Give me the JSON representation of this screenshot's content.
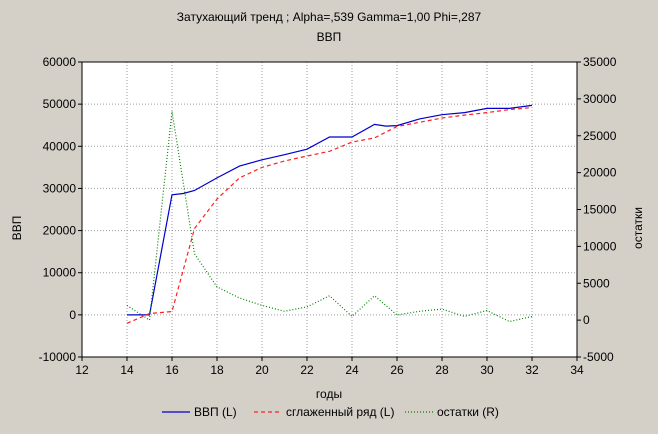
{
  "chart_data": {
    "type": "line",
    "title": "Затухающий тренд ; Alpha=,539 Gamma=1,00 Phi=,287",
    "subtitle": "ВВП",
    "xlabel": "годы",
    "ylabel_left": "ВВП",
    "ylabel_right": "остатки",
    "xlim": [
      12,
      34
    ],
    "ylim_left": [
      -10000,
      60000
    ],
    "ylim_right": [
      -5000,
      35000
    ],
    "x_ticks": [
      12,
      14,
      16,
      18,
      20,
      22,
      24,
      26,
      28,
      30,
      32,
      34
    ],
    "y_ticks_left": [
      -10000,
      0,
      10000,
      20000,
      30000,
      40000,
      50000,
      60000
    ],
    "y_ticks_right": [
      -5000,
      0,
      5000,
      10000,
      15000,
      20000,
      25000,
      30000,
      35000
    ],
    "grid": true,
    "legend_position": "bottom",
    "series": [
      {
        "name": "ВВП (L)",
        "axis": "left",
        "style": "solid",
        "color": "#0000cc",
        "x": [
          14,
          15,
          16,
          16.5,
          17,
          18,
          19,
          20,
          21,
          22,
          23,
          24,
          25,
          25.5,
          26,
          27,
          28,
          29,
          30,
          31,
          32
        ],
        "y": [
          0,
          0,
          28500,
          28800,
          29500,
          32500,
          35300,
          36800,
          38000,
          39300,
          42200,
          42200,
          45200,
          44800,
          44900,
          46500,
          47500,
          48000,
          49000,
          49000,
          49700
        ]
      },
      {
        "name": "сглаженный ряд (L)",
        "axis": "left",
        "style": "dashed",
        "color": "#ff2020",
        "x": [
          14,
          15,
          16,
          17,
          18,
          19,
          20,
          21,
          22,
          23,
          24,
          25,
          26,
          27,
          28,
          29,
          30,
          31,
          32
        ],
        "y": [
          -2000,
          300,
          800,
          20500,
          27500,
          32500,
          35000,
          36500,
          37700,
          38800,
          41000,
          42000,
          44700,
          45700,
          46700,
          47400,
          48000,
          48700,
          49200
        ]
      },
      {
        "name": "остатки (R)",
        "axis": "right",
        "style": "dotted",
        "color": "#008000",
        "x": [
          14,
          15,
          16,
          17,
          18,
          19,
          20,
          21,
          22,
          23,
          24,
          25,
          26,
          27,
          28,
          29,
          30,
          31,
          32
        ],
        "y": [
          2000,
          0,
          28300,
          9000,
          4500,
          3000,
          2000,
          1200,
          1800,
          3300,
          500,
          3300,
          700,
          1200,
          1500,
          500,
          1300,
          -200,
          500
        ]
      }
    ]
  },
  "colors": {
    "background": "#d4d0c8",
    "plot_area": "#ffffff",
    "grid": "#9e9e9e"
  }
}
